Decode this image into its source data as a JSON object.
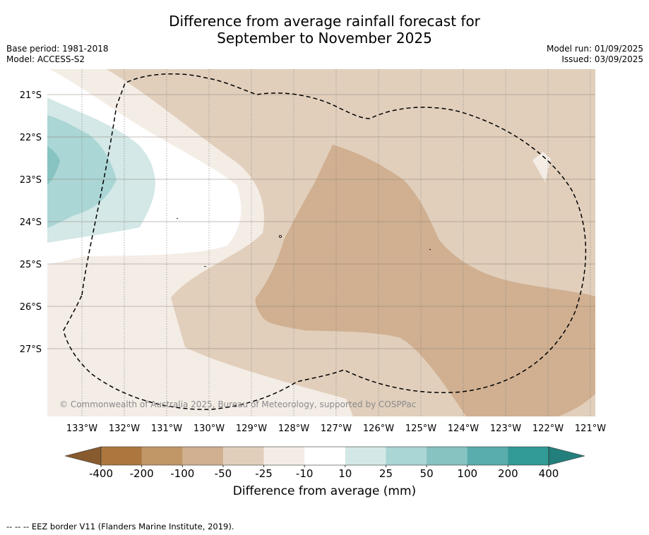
{
  "map": {
    "title_line1": "Difference from average rainfall forecast for",
    "title_line2": "September to November 2025",
    "base_period": "Base period: 1981-2018",
    "model": "Model: ACCESS-S2",
    "model_run": "Model run: 01/09/2025",
    "issued": "Issued: 03/09/2025",
    "copyright": "© Commonwealth of Australia 2025, Bureau of Meteorology, supported by COSPPac",
    "footnote": "-- -- -- EEZ border V11 (Flanders Marine Institute, 2019).",
    "lat_labels": [
      "21°S",
      "22°S",
      "23°S",
      "24°S",
      "25°S",
      "26°S",
      "27°S"
    ],
    "lon_labels": [
      "133°W",
      "132°W",
      "131°W",
      "130°W",
      "129°W",
      "128°W",
      "127°W",
      "126°W",
      "125°W",
      "124°W",
      "123°W",
      "122°W",
      "121°W"
    ],
    "regions": [
      {
        "name": "wet-10-25",
        "label": "10 to 25 mm wetter than average"
      },
      {
        "name": "wet-25-50",
        "label": "25 to 50 mm wetter than average"
      },
      {
        "name": "wet-50-100",
        "label": "50 to 100 mm wetter than average"
      },
      {
        "name": "dry-10-25",
        "label": "10 to 25 mm drier than average"
      },
      {
        "name": "dry-25-50",
        "label": "25 to 50 mm drier than average"
      },
      {
        "name": "dry-50-100",
        "label": "50 to 100 mm drier than average"
      }
    ]
  },
  "colorbar": {
    "title": "Difference from average (mm)",
    "ticks": [
      "-400",
      "-200",
      "-100",
      "-50",
      "-25",
      "-10",
      "10",
      "25",
      "50",
      "100",
      "200",
      "400"
    ],
    "colors": [
      "#ac773f",
      "#c29768",
      "#d0b091",
      "#e1cfbc",
      "#f4ede6",
      "#ffffff",
      "#d3e8e7",
      "#aad6d5",
      "#86c3c1",
      "#5aadac",
      "#329a97"
    ],
    "extend_low_color": "#875b2e",
    "extend_high_color": "#237f7c"
  }
}
